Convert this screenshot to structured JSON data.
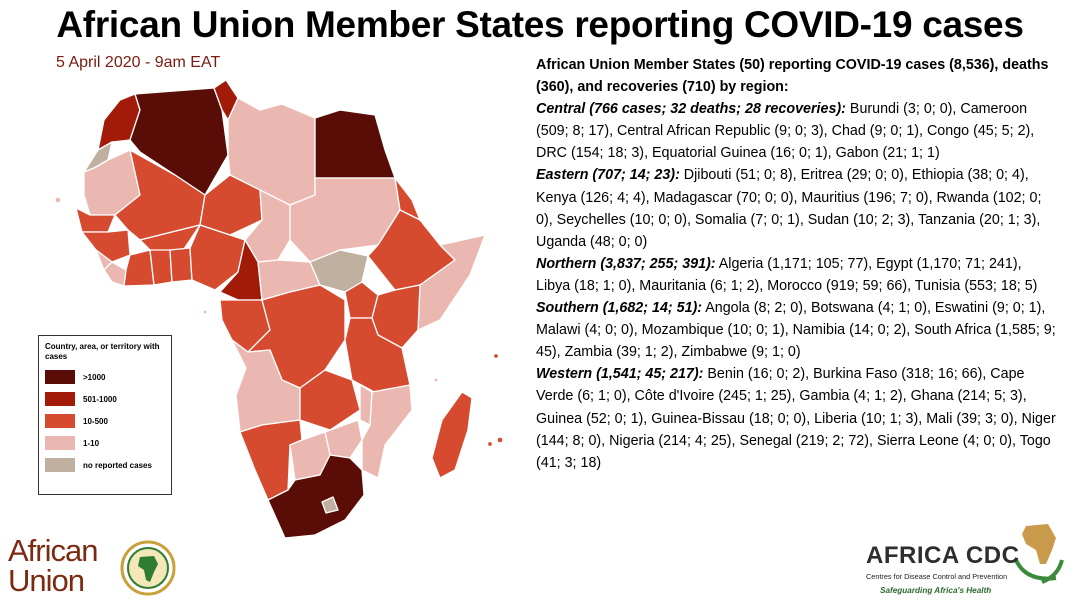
{
  "title": "African Union Member States reporting COVID-19 cases",
  "date": "5 April 2020 - 9am EAT",
  "colors": {
    "gt1000": "#5a0c06",
    "c501_1000": "#a21b09",
    "c10_500": "#d64a30",
    "c1_10": "#eab8b0",
    "none": "#bfb09f"
  },
  "legend": {
    "title": "Country, area, or territory with cases",
    "items": [
      {
        "label": ">1000",
        "color": "#5a0c06"
      },
      {
        "label": "501-1000",
        "color": "#a21b09"
      },
      {
        "label": "10-500",
        "color": "#d64a30"
      },
      {
        "label": "1-10",
        "color": "#eab8b0"
      },
      {
        "label": "no reported cases",
        "color": "#bfb09f"
      }
    ]
  },
  "summary": {
    "headline": "African Union Member States (50) reporting COVID-19 cases (8,536), deaths (360), and recoveries (710) by region:",
    "regions": [
      {
        "name": "Central (766 cases; 32 deaths; 28 recoveries):",
        "text": " Burundi (3; 0; 0), Cameroon (509; 8; 17), Central African Republic (9; 0; 3), Chad (9; 0; 1), Congo (45; 5; 2), DRC (154; 18; 3), Equatorial Guinea (16; 0; 1), Gabon (21; 1; 1)"
      },
      {
        "name": "Eastern (707; 14; 23):",
        "text": " Djibouti (51; 0; 8), Eritrea (29; 0; 0), Ethiopia (38; 0; 4), Kenya (126; 4; 4), Madagascar (70; 0; 0), Mauritius (196; 7; 0), Rwanda (102; 0; 0), Seychelles (10; 0; 0), Somalia (7; 0; 1), Sudan (10; 2; 3), Tanzania (20; 1; 3), Uganda (48; 0; 0)"
      },
      {
        "name": "Northern (3,837; 255; 391):",
        "text": " Algeria (1,171; 105; 77), Egypt (1,170; 71; 241), Libya (18; 1; 0), Mauritania (6; 1; 2), Morocco (919; 59; 66), Tunisia (553; 18; 5)"
      },
      {
        "name": "Southern (1,682; 14; 51):",
        "text": " Angola (8; 2; 0), Botswana (4; 1; 0), Eswatini (9; 0; 1), Malawi (4; 0; 0), Mozambique (10; 0; 1),  Namibia (14; 0; 2), South Africa (1,585; 9; 45), Zambia (39; 1; 2), Zimbabwe (9; 1; 0)"
      },
      {
        "name": "Western (1,541; 45; 217):",
        "text": " Benin (16; 0; 2), Burkina Faso (318; 16; 66), Cape Verde (6; 1; 0), Côte d'Ivoire (245; 1; 25), Gambia (4; 1; 2), Ghana (214; 5; 3), Guinea (52; 0; 1), Guinea-Bissau (18; 0; 0), Liberia (10; 1; 3), Mali (39; 3; 0), Niger (144; 8; 0), Nigeria (214; 4; 25), Senegal (219; 2; 72), Sierra Leone (4; 0; 0), Togo (41; 3; 18)"
      }
    ]
  },
  "logos": {
    "au_line1": "African",
    "au_line2": "Union",
    "cdc_name": "AFRICA CDC",
    "cdc_sub": "Centres for Disease Control and Prevention",
    "cdc_tag": "Safeguarding Africa's Health"
  }
}
